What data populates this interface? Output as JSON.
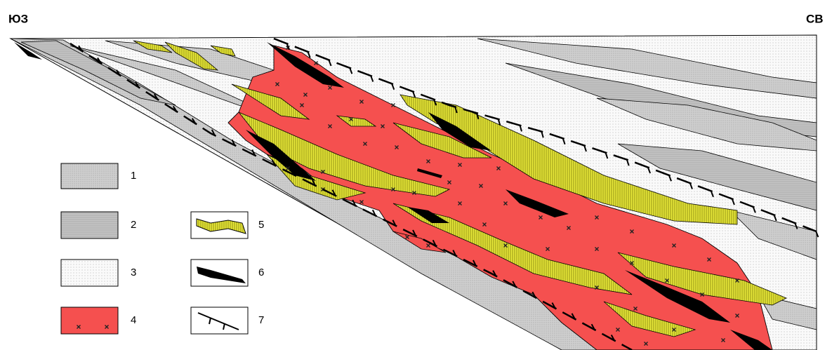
{
  "labels": {
    "left": "ЮЗ",
    "right": "СВ"
  },
  "legend": [
    {
      "label": "1"
    },
    {
      "label": "2"
    },
    {
      "label": "3"
    },
    {
      "label": "4"
    },
    {
      "label": "5"
    },
    {
      "label": "6"
    },
    {
      "label": "7"
    }
  ]
}
